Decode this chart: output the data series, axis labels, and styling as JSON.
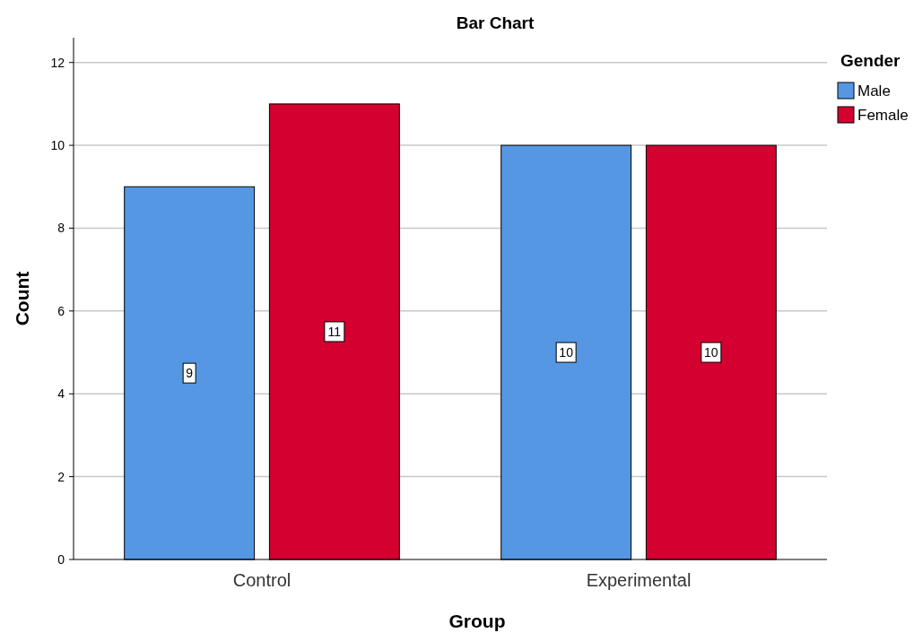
{
  "chart_data": {
    "type": "bar",
    "title": "Bar Chart",
    "xlabel": "Group",
    "ylabel": "Count",
    "legend_title": "Gender",
    "categories": [
      "Control",
      "Experimental"
    ],
    "series": [
      {
        "name": "Male",
        "color": "#5597e3",
        "values": [
          9,
          10
        ]
      },
      {
        "name": "Female",
        "color": "#d40030",
        "values": [
          11,
          10
        ]
      }
    ],
    "ylim": [
      0,
      12.6
    ],
    "yticks": [
      0,
      2,
      4,
      6,
      8,
      10,
      12
    ],
    "grid": "y",
    "legend": "top right",
    "data_labels": true
  }
}
